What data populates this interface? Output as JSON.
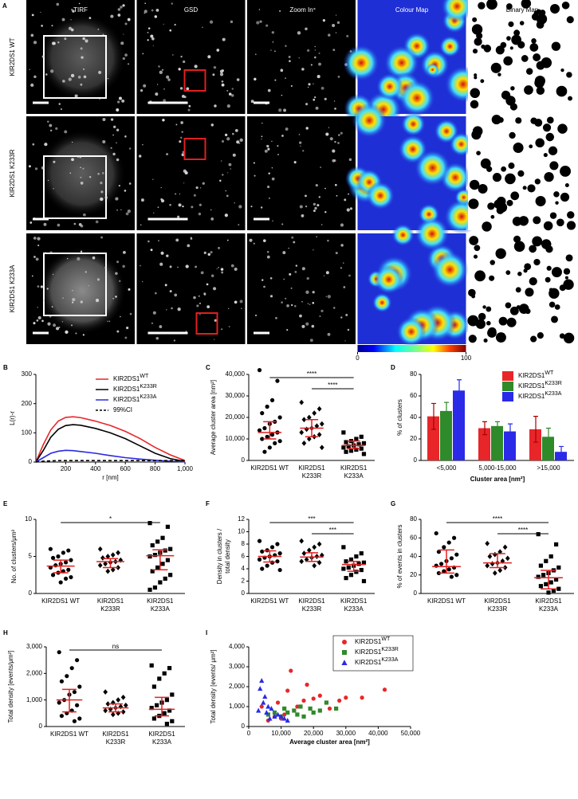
{
  "panel_a": {
    "letter": "A",
    "columns": [
      "TIRF",
      "GSD",
      "Zoom In",
      "Colour Map",
      "Binary Map"
    ],
    "rows": [
      "KIR2DS1 WT",
      "KIR2DS1 K233R",
      "KIR2DS1 K233A"
    ],
    "colorbar_ticks": [
      0,
      100
    ]
  },
  "chart_data": [
    {
      "type": "line",
      "letter": "B",
      "xlabel": "r [nm]",
      "ylabel": "L(r)-r",
      "legend": "top-right",
      "x": [
        0,
        50,
        100,
        150,
        200,
        250,
        300,
        400,
        500,
        600,
        700,
        800,
        900,
        1000
      ],
      "xlim": [
        0,
        1000
      ],
      "xticks": [
        200,
        400,
        600,
        800,
        {
          "value": 1000,
          "label": "1,000"
        }
      ],
      "ylim": [
        0,
        300
      ],
      "yticks": [
        0,
        100,
        200,
        300
      ],
      "series": [
        {
          "name": "KIR2DS1",
          "name_sup": "WT",
          "color": "#e8262a",
          "dashed": false,
          "values": [
            0,
            60,
            110,
            140,
            153,
            155,
            152,
            140,
            125,
            105,
            80,
            50,
            25,
            5
          ]
        },
        {
          "name": "KIR2DS1",
          "name_sup": "K233R",
          "color": "#000000",
          "dashed": false,
          "values": [
            0,
            40,
            85,
            112,
            125,
            128,
            126,
            115,
            100,
            80,
            55,
            30,
            12,
            2
          ]
        },
        {
          "name": "KIR2DS1",
          "name_sup": "K233A",
          "color": "#2a2ae0",
          "dashed": false,
          "values": [
            0,
            15,
            30,
            37,
            40,
            39,
            36,
            30,
            22,
            15,
            10,
            6,
            3,
            1
          ]
        },
        {
          "name": "99%CI",
          "color": "#000000",
          "dashed": true,
          "values": [
            0,
            3,
            4,
            5,
            5,
            5,
            5,
            5,
            5,
            5,
            5,
            5,
            5,
            5
          ]
        }
      ]
    },
    {
      "type": "dot",
      "letter": "C",
      "ylabel": "Average cluster area [nm²]",
      "categories": [
        [
          "KIR2DS1 WT"
        ],
        [
          "KIR2DS1",
          "K233R"
        ],
        [
          "KIR2DS1",
          "K233A"
        ]
      ],
      "markers": [
        "circle",
        "diamond",
        "square"
      ],
      "ylim": [
        0,
        40000
      ],
      "yticks": [
        0,
        {
          "value": 10000,
          "label": "10,000"
        },
        {
          "value": 20000,
          "label": "20,000"
        },
        {
          "value": 30000,
          "label": "30,000"
        },
        {
          "value": 40000,
          "label": "40,000"
        }
      ],
      "values": [
        [
          42000,
          37000,
          28000,
          25000,
          22000,
          20000,
          18000,
          17000,
          15000,
          14000,
          13000,
          12000,
          11000,
          10000,
          9000,
          8000,
          6000,
          4000
        ],
        [
          27000,
          24000,
          22000,
          20000,
          19000,
          17000,
          16000,
          15000,
          14500,
          13000,
          12000,
          11000,
          10000,
          8000,
          6000
        ],
        [
          13000,
          11000,
          10000,
          9000,
          8500,
          8000,
          7500,
          7000,
          6500,
          6000,
          5500,
          5000,
          4500,
          4000,
          3000
        ]
      ],
      "median": [
        13000,
        15000,
        7000
      ],
      "iqr_low": [
        10000,
        11000,
        5500
      ],
      "iqr_high": [
        18000,
        19000,
        9000
      ],
      "significance": [
        {
          "from": 0,
          "to": 2,
          "label": "****"
        },
        {
          "from": 1,
          "to": 2,
          "label": "****"
        }
      ]
    },
    {
      "type": "groupedbar",
      "letter": "D",
      "xlabel": "Cluster area [nm²]",
      "ylabel": "% of clusters",
      "legend": "top-right",
      "categories": [
        "<5,000",
        "5,000-15,000",
        ">15,000"
      ],
      "ylim": [
        0,
        80
      ],
      "yticks": [
        0,
        20,
        40,
        60,
        80
      ],
      "series": [
        {
          "name": "KIR2DS1",
          "name_sup": "WT",
          "color": "#e8262a",
          "values": [
            41,
            30,
            29
          ],
          "errors": [
            12,
            6,
            12
          ]
        },
        {
          "name": "KIR2DS1",
          "name_sup": "K233R",
          "color": "#2f8a2a",
          "values": [
            46,
            32,
            22
          ],
          "errors": [
            8,
            4,
            8
          ]
        },
        {
          "name": "KIR2DS1",
          "name_sup": "K233A",
          "color": "#2a2ae8",
          "values": [
            65,
            27,
            8
          ],
          "errors": [
            10,
            7,
            5
          ]
        }
      ]
    },
    {
      "type": "dot",
      "letter": "E",
      "ylabel": "No. of clusters/μm²",
      "categories": [
        [
          "KIR2DS1 WT"
        ],
        [
          "KIR2DS1",
          "K233R"
        ],
        [
          "KIR2DS1",
          "K233A"
        ]
      ],
      "markers": [
        "circle",
        "diamond",
        "square"
      ],
      "ylim": [
        0,
        10
      ],
      "yticks": [
        0,
        5,
        10
      ],
      "values": [
        [
          6,
          5.8,
          5.5,
          5,
          4.8,
          4.5,
          4.2,
          4,
          3.8,
          3.5,
          3.2,
          3,
          2.8,
          2.5,
          2.2,
          2,
          1.5
        ],
        [
          6,
          5.5,
          5.2,
          5,
          4.8,
          4.5,
          4.3,
          4.2,
          4,
          3.8,
          3.5,
          3.2,
          3
        ],
        [
          9.5,
          9,
          7.5,
          7,
          6.5,
          6,
          5.8,
          5.5,
          5.2,
          5,
          4.5,
          4,
          3.5,
          3,
          2.5,
          2,
          1.5,
          0.8,
          0.5
        ]
      ],
      "median": [
        3.7,
        4.3,
        5.1
      ],
      "iqr_low": [
        2.8,
        3.5,
        3.2
      ],
      "iqr_high": [
        4.5,
        4.7,
        5.9
      ],
      "significance": [
        {
          "from": 0,
          "to": 2,
          "label": "*"
        }
      ]
    },
    {
      "type": "dot",
      "letter": "F",
      "ylabel": [
        "Density in clusters /",
        "total density"
      ],
      "categories": [
        [
          "KIR2DS1 WT"
        ],
        [
          "KIR2DS1",
          "K233R"
        ],
        [
          "KIR2DS1",
          "K233A"
        ]
      ],
      "markers": [
        "circle",
        "diamond",
        "square"
      ],
      "ylim": [
        0,
        12
      ],
      "yticks": [
        0,
        2,
        4,
        6,
        8,
        10,
        12
      ],
      "values": [
        [
          8.5,
          8,
          7.5,
          7,
          6.8,
          6.5,
          6.2,
          6,
          5.8,
          5.5,
          5.2,
          5,
          4.5,
          4,
          3.8
        ],
        [
          8.5,
          8,
          7.5,
          7,
          6.5,
          6.2,
          6,
          5.8,
          5.5,
          5.2,
          5,
          4.5
        ],
        [
          7.5,
          6.5,
          6,
          5.5,
          5.2,
          5,
          4.8,
          4.5,
          4.2,
          4,
          3.8,
          3.5,
          3,
          2.5,
          2
        ]
      ],
      "median": [
        6,
        5.9,
        4.7
      ],
      "iqr_low": [
        5.1,
        5.2,
        3.6
      ],
      "iqr_high": [
        6.9,
        6.6,
        5.2
      ],
      "significance": [
        {
          "from": 0,
          "to": 2,
          "label": "***"
        },
        {
          "from": 1,
          "to": 2,
          "label": "***"
        }
      ]
    },
    {
      "type": "dot",
      "letter": "G",
      "ylabel": "% of events in clusters",
      "categories": [
        [
          "KIR2DS1 WT"
        ],
        [
          "KIR2DS1",
          "K233R"
        ],
        [
          "KIR2DS1",
          "K233A"
        ]
      ],
      "markers": [
        "circle",
        "diamond",
        "square"
      ],
      "ylim": [
        0,
        80
      ],
      "yticks": [
        0,
        20,
        40,
        60,
        80
      ],
      "values": [
        [
          65,
          60,
          55,
          50,
          45,
          42,
          38,
          35,
          32,
          30,
          28,
          26,
          24,
          22,
          20,
          18
        ],
        [
          54,
          50,
          45,
          42,
          40,
          38,
          35,
          33,
          32,
          30,
          28,
          25,
          22
        ],
        [
          64,
          53,
          40,
          35,
          30,
          28,
          25,
          22,
          20,
          18,
          15,
          12,
          10,
          8,
          5,
          3,
          1
        ]
      ],
      "median": [
        29,
        33,
        17
      ],
      "iqr_low": [
        22,
        28,
        5
      ],
      "iqr_high": [
        47,
        43,
        25
      ],
      "significance": [
        {
          "from": 0,
          "to": 2,
          "label": "****"
        },
        {
          "from": 1,
          "to": 2,
          "label": "****"
        }
      ]
    },
    {
      "type": "dot",
      "letter": "H",
      "ylabel": "Total density [events/μm²]",
      "categories": [
        [
          "KIR2DS1 WT"
        ],
        [
          "KIR2DS1",
          "K233R"
        ],
        [
          "KIR2DS1",
          "K233A"
        ]
      ],
      "markers": [
        "circle",
        "diamond",
        "square"
      ],
      "ylim": [
        0,
        3000
      ],
      "yticks": [
        0,
        {
          "value": 1000,
          "label": "1,000"
        },
        {
          "value": 2000,
          "label": "2,000"
        },
        {
          "value": 3000,
          "label": "3,000"
        }
      ],
      "values": [
        [
          2800,
          2500,
          2200,
          1900,
          1700,
          1500,
          1300,
          1200,
          1000,
          900,
          800,
          600,
          500,
          400,
          300,
          200
        ],
        [
          1300,
          1100,
          1000,
          900,
          850,
          800,
          750,
          700,
          650,
          600,
          550,
          500,
          450
        ],
        [
          2300,
          2200,
          2000,
          1800,
          1500,
          1200,
          1000,
          900,
          800,
          700,
          600,
          500,
          400,
          300,
          200,
          100
        ]
      ],
      "median": [
        1000,
        700,
        650
      ],
      "iqr_low": [
        550,
        550,
        400
      ],
      "iqr_high": [
        1400,
        850,
        1100
      ],
      "significance": [
        {
          "from": 0,
          "to": 2,
          "label": "ns"
        }
      ]
    },
    {
      "type": "scatter",
      "letter": "I",
      "xlabel": "Average cluster area [nm²]",
      "ylabel": "Total density [events/ μm²]",
      "legend": "top-right",
      "xlim": [
        0,
        50000
      ],
      "xticks": [
        0,
        {
          "value": 10000,
          "label": "10,000"
        },
        {
          "value": 20000,
          "label": "20,000"
        },
        {
          "value": 30000,
          "label": "30,000"
        },
        {
          "value": 40000,
          "label": "40,000"
        },
        {
          "value": 50000,
          "label": "50,000"
        }
      ],
      "ylim": [
        0,
        4000
      ],
      "yticks": [
        0,
        {
          "value": 1000,
          "label": "1,000"
        },
        {
          "value": 2000,
          "label": "2,000"
        },
        {
          "value": 3000,
          "label": "3,000"
        },
        {
          "value": 4000,
          "label": "4,000"
        }
      ],
      "series": [
        {
          "name": "KIR2DS1",
          "name_sup": "WT",
          "color": "#e8262a",
          "marker": "circle",
          "x": [
            42000,
            35000,
            30000,
            28000,
            25000,
            22000,
            20000,
            18000,
            17000,
            15000,
            13000,
            12000,
            11000,
            10000,
            9000,
            8000,
            6000,
            4000
          ],
          "values": [
            1850,
            1450,
            1450,
            1300,
            900,
            1550,
            1400,
            2100,
            1300,
            1000,
            2800,
            1800,
            600,
            400,
            1200,
            500,
            300,
            1000
          ]
        },
        {
          "name": "KIR2DS1",
          "name_sup": "K233R",
          "color": "#2f8a2a",
          "marker": "square",
          "x": [
            27000,
            24000,
            22000,
            20000,
            19000,
            17000,
            16000,
            15000,
            14000,
            12000,
            11000,
            10000,
            8000,
            6000
          ],
          "values": [
            900,
            1200,
            800,
            700,
            900,
            500,
            1000,
            600,
            800,
            700,
            900,
            500,
            700,
            600
          ]
        },
        {
          "name": "KIR2DS1",
          "name_sup": "K233A",
          "color": "#2a2ae8",
          "marker": "triangle",
          "x": [
            4000,
            3500,
            5000,
            4500,
            6000,
            3000,
            5500,
            7000,
            8000,
            6500,
            9000,
            10000,
            11000,
            12000
          ],
          "values": [
            2300,
            1900,
            1500,
            1200,
            1000,
            800,
            700,
            900,
            500,
            400,
            600,
            500,
            400,
            300
          ]
        }
      ]
    }
  ]
}
